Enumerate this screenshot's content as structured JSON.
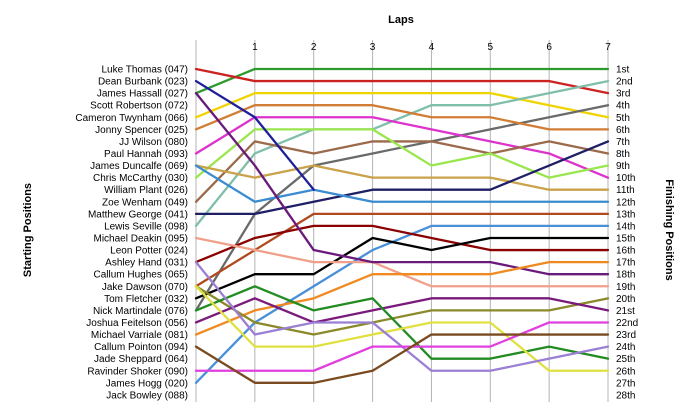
{
  "chart_data": {
    "type": "line",
    "title": "",
    "xlabel": "Laps",
    "ylabel_left": "Starting Positions",
    "ylabel_right": "Finishing Positions",
    "x": [
      0,
      1,
      2,
      3,
      4,
      5,
      6,
      7
    ],
    "x_tick_labels": [
      "1",
      "2",
      "3",
      "4",
      "5",
      "6",
      "7"
    ],
    "y_range": [
      1,
      28
    ],
    "y_inverted": true,
    "grid": {
      "vertical": true,
      "horizontal": false
    },
    "start_labels": [
      "Luke Thomas (047)",
      "Dean Burbank (023)",
      "James Hassall (027)",
      "Scott Robertson (072)",
      "Cameron Twynham (066)",
      "Jonny Spencer (025)",
      "JJ Wilson (080)",
      "Paul Hannah (093)",
      "James Duncalfe (069)",
      "Chris McCarthy (030)",
      "William Plant (026)",
      "Zoe Wenham (049)",
      "Matthew George (041)",
      "Lewis Seville (098)",
      "Michael Deakin (095)",
      "Leon Potter (024)",
      "Ashley Hand (031)",
      "Callum Hughes (065)",
      "Jake Dawson (070)",
      "Tom Fletcher (032)",
      "Nick Martindale (076)",
      "Joshua Feitelson (056)",
      "Michael Varriale (081)",
      "Callum Pointon (094)",
      "Jade Sheppard (064)",
      "Ravinder Shoker (090)",
      "James Hogg (020)",
      "Jack Bowley (088)"
    ],
    "finish_labels": [
      "1st",
      "2nd",
      "3rd",
      "4th",
      "5th",
      "6th",
      "7th",
      "8th",
      "9th",
      "10th",
      "11th",
      "12th",
      "13th",
      "14th",
      "15th",
      "16th",
      "17th",
      "18th",
      "19th",
      "20th",
      "21st",
      "22nd",
      "23rd",
      "24th",
      "25th",
      "26th",
      "27th",
      "28th"
    ],
    "series": [
      {
        "color": "#2e9a2e",
        "values": [
          3,
          1,
          1,
          1,
          1,
          1,
          1,
          1
        ]
      },
      {
        "color": "#cc2222",
        "values": [
          1,
          2,
          2,
          2,
          2,
          2,
          2,
          3
        ]
      },
      {
        "color": "#f0d400",
        "values": [
          5,
          3,
          3,
          3,
          3,
          3,
          4,
          5
        ]
      },
      {
        "color": "#6a6a6a",
        "values": [
          21,
          13,
          9,
          8,
          7,
          6,
          5,
          4
        ]
      },
      {
        "color": "#7fbfaa",
        "values": [
          14,
          8,
          6,
          6,
          4,
          4,
          3,
          2
        ]
      },
      {
        "color": "#d27d35",
        "values": [
          6,
          4,
          4,
          4,
          5,
          5,
          6,
          6
        ]
      },
      {
        "color": "#dd33cc",
        "values": [
          8,
          5,
          5,
          5,
          6,
          7,
          8,
          10
        ]
      },
      {
        "color": "#9a6a4a",
        "values": [
          12,
          7,
          8,
          7,
          7,
          8,
          7,
          8
        ]
      },
      {
        "color": "#99e64d",
        "values": [
          10,
          6,
          6,
          6,
          9,
          8,
          10,
          9
        ]
      },
      {
        "color": "#c9a24a",
        "values": [
          9,
          10,
          9,
          10,
          10,
          10,
          11,
          11
        ]
      },
      {
        "color": "#1f1f66",
        "values": [
          13,
          13,
          12,
          11,
          11,
          11,
          9,
          7
        ]
      },
      {
        "color": "#3a8bd0",
        "values": [
          9,
          12,
          11,
          12,
          12,
          12,
          12,
          12
        ]
      },
      {
        "color": "#b04a1e",
        "values": [
          19,
          16,
          13,
          13,
          13,
          13,
          13,
          13
        ]
      },
      {
        "color": "#4a90d9",
        "values": [
          27,
          22,
          19,
          16,
          14,
          14,
          14,
          14
        ]
      },
      {
        "color": "#8b0000",
        "values": [
          17,
          15,
          14,
          14,
          15,
          16,
          16,
          16
        ]
      },
      {
        "color": "#000000",
        "values": [
          20,
          18,
          18,
          15,
          16,
          15,
          15,
          15
        ]
      },
      {
        "color": "#f0a08a",
        "values": [
          15,
          16,
          17,
          17,
          19,
          19,
          19,
          19
        ]
      },
      {
        "color": "#6a1a7a",
        "values": [
          3,
          9,
          16,
          17,
          17,
          17,
          18,
          18
        ]
      },
      {
        "color": "#f08a20",
        "values": [
          23,
          21,
          20,
          18,
          18,
          18,
          17,
          17
        ]
      },
      {
        "color": "#8a8a2a",
        "values": [
          19,
          22,
          23,
          22,
          21,
          21,
          21,
          20
        ]
      },
      {
        "color": "#7a1a7a",
        "values": [
          22,
          20,
          22,
          21,
          20,
          20,
          20,
          21
        ]
      },
      {
        "color": "#228b22",
        "values": [
          21,
          19,
          21,
          20,
          25,
          25,
          24,
          25
        ]
      },
      {
        "color": "#e0e040",
        "values": [
          19,
          24,
          24,
          23,
          22,
          22,
          26,
          26
        ]
      },
      {
        "color": "#9b7fd4",
        "values": [
          17,
          23,
          22,
          22,
          26,
          26,
          25,
          24
        ]
      },
      {
        "color": "#e040e0",
        "values": [
          26,
          26,
          26,
          24,
          24,
          24,
          22,
          22
        ]
      },
      {
        "color": "#7a4a20",
        "values": [
          24,
          27,
          27,
          26,
          23,
          23,
          23,
          23
        ]
      },
      {
        "color": "#1f1f9a",
        "values": [
          2,
          5,
          11,
          null,
          null,
          null,
          null,
          null
        ]
      }
    ]
  }
}
